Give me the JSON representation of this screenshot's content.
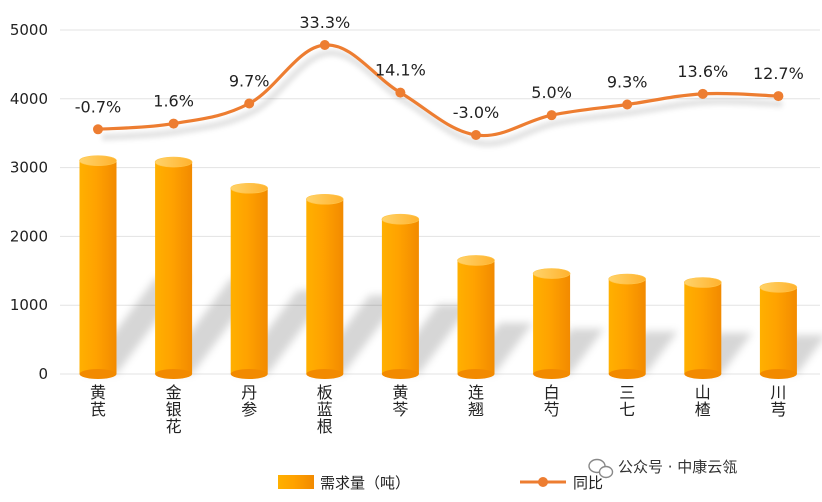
{
  "chart_data": {
    "type": "bar",
    "categories": [
      [
        "黄",
        "芪"
      ],
      [
        "金",
        "银",
        "花"
      ],
      [
        "丹",
        "参"
      ],
      [
        "板",
        "蓝",
        "根"
      ],
      [
        "黄",
        "芩"
      ],
      [
        "连",
        "翘"
      ],
      [
        "白",
        "芍"
      ],
      [
        "三",
        "七"
      ],
      [
        "山",
        "楂"
      ],
      [
        "川",
        "芎"
      ]
    ],
    "series": [
      {
        "name": "需求量（吨）",
        "type": "bar",
        "axis": "left",
        "values": [
          3100,
          3080,
          2700,
          2540,
          2250,
          1650,
          1460,
          1380,
          1330,
          1260
        ],
        "color": "#FFA000"
      },
      {
        "name": "同比",
        "type": "line",
        "axis": "none",
        "values": [
          -0.7,
          1.6,
          9.7,
          33.3,
          14.1,
          -3.0,
          5.0,
          9.3,
          13.6,
          12.7
        ],
        "labels": [
          "-0.7%",
          "1.6%",
          "9.7%",
          "33.3%",
          "14.1%",
          "-3.0%",
          "5.0%",
          "9.3%",
          "13.6%",
          "12.7%"
        ],
        "color": "#ED7D31"
      }
    ],
    "yTicks": [
      "0",
      "1000",
      "2000",
      "3000",
      "4000",
      "5000"
    ],
    "ylim": [
      0,
      5000
    ],
    "grid": true,
    "legend_position": "bottom"
  },
  "watermark": {
    "text": "公众号 · 中康云瓴",
    "icon": "wechat-icon"
  }
}
